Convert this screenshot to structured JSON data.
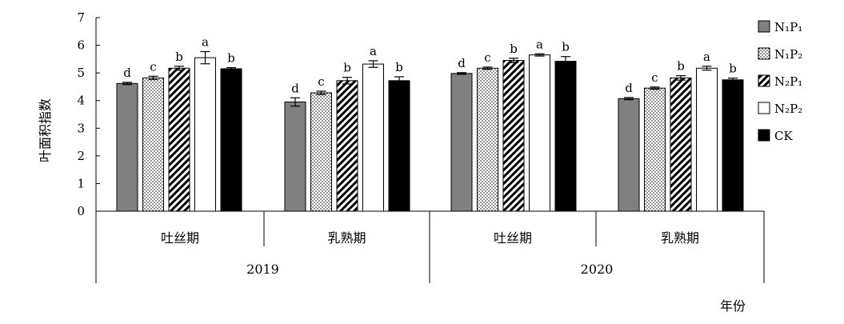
{
  "chart_data": {
    "type": "bar",
    "ylabel": "叶面积指数",
    "xlabel": "年份",
    "ylim": [
      0,
      7
    ],
    "yticks": [
      "0",
      "1",
      "2",
      "3",
      "4",
      "5",
      "6",
      "7"
    ],
    "grid": false,
    "legend_position": "right",
    "stages": [
      "吐丝期",
      "乳熟期",
      "吐丝期",
      "乳熟期"
    ],
    "years": [
      "2019",
      "2020"
    ],
    "series": [
      {
        "name": "N₁P₁",
        "fill": "solid-gray",
        "values": [
          4.62,
          3.95,
          4.98,
          4.07
        ],
        "errors": [
          0.04,
          0.15,
          0.03,
          0.04
        ],
        "letters": [
          "d",
          "d",
          "d",
          "d"
        ]
      },
      {
        "name": "N₁P₂",
        "fill": "dotted",
        "values": [
          4.82,
          4.28,
          5.17,
          4.45
        ],
        "errors": [
          0.06,
          0.06,
          0.04,
          0.04
        ],
        "letters": [
          "c",
          "c",
          "c",
          "c"
        ]
      },
      {
        "name": "N₂P₁",
        "fill": "diagonal-hatch",
        "values": [
          5.17,
          4.72,
          5.45,
          4.82
        ],
        "errors": [
          0.07,
          0.12,
          0.08,
          0.08
        ],
        "letters": [
          "b",
          "b",
          "b",
          "b"
        ]
      },
      {
        "name": "N₂P₂",
        "fill": "white",
        "values": [
          5.55,
          5.32,
          5.65,
          5.17
        ],
        "errors": [
          0.22,
          0.12,
          0.04,
          0.07
        ],
        "letters": [
          "a",
          "a",
          "a",
          "a"
        ]
      },
      {
        "name": "CK",
        "fill": "black",
        "values": [
          5.15,
          4.72,
          5.42,
          4.75
        ],
        "errors": [
          0.04,
          0.14,
          0.17,
          0.06
        ],
        "letters": [
          "b",
          "b",
          "b",
          "b"
        ]
      }
    ]
  },
  "colors": {
    "solid-gray": "#808080",
    "black": "#000000",
    "white": "#ffffff",
    "stroke": "#000000"
  }
}
